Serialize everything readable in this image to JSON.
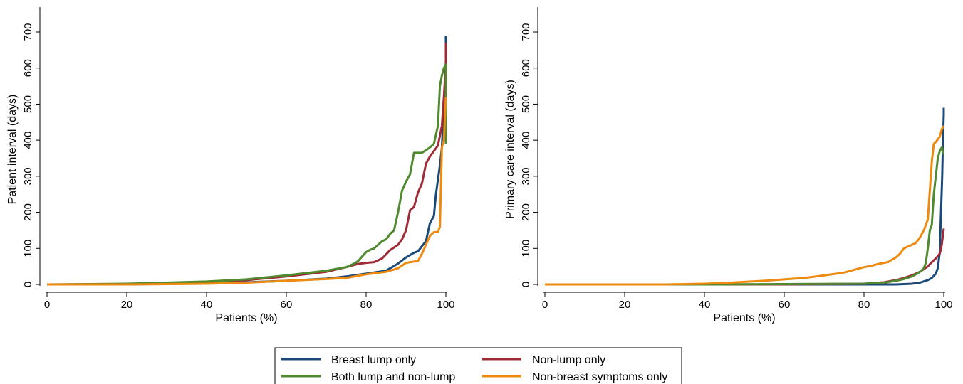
{
  "colors": {
    "breast_lump_only": "#1a4a7a",
    "non_lump_only": "#9e2a36",
    "both_lump_and_non_lump": "#4f8a2e",
    "non_breast_symptoms_only": "#ee8a10"
  },
  "legend": {
    "placement": "bottom-center",
    "items": [
      {
        "key": "breast_lump_only",
        "label": "Breast lump only"
      },
      {
        "key": "non_lump_only",
        "label": "Non-lump only"
      },
      {
        "key": "both_lump_and_non_lump",
        "label": "Both lump and non-lump"
      },
      {
        "key": "non_breast_symptoms_only",
        "label": "Non-breast symptoms only"
      }
    ]
  },
  "chart_data": [
    {
      "type": "line",
      "title": "",
      "xlabel": "Patients (%)",
      "ylabel": "Patient interval (days)",
      "xlim": [
        0,
        100
      ],
      "ylim": [
        0,
        700
      ],
      "xticks": [
        0,
        20,
        40,
        60,
        80,
        100
      ],
      "yticks": [
        0,
        100,
        200,
        300,
        400,
        500,
        600,
        700
      ],
      "grid": false,
      "series": [
        {
          "key": "breast_lump_only",
          "name": "Breast lump only",
          "x": [
            0,
            20,
            40,
            50,
            60,
            70,
            75,
            80,
            85,
            88,
            90,
            92,
            93,
            95,
            96,
            97,
            97.5,
            98,
            98.5,
            99,
            99.3,
            99.6,
            99.8,
            100,
            100,
            100
          ],
          "y": [
            0,
            0,
            3,
            6,
            10,
            16,
            22,
            30,
            38,
            58,
            75,
            88,
            92,
            120,
            170,
            190,
            250,
            290,
            330,
            380,
            450,
            500,
            560,
            620,
            660,
            690
          ]
        },
        {
          "key": "non_lump_only",
          "name": "Non-lump only",
          "x": [
            0,
            20,
            40,
            50,
            60,
            70,
            75,
            78,
            80,
            82,
            84,
            86,
            88,
            89,
            90,
            91,
            92,
            93,
            94,
            95,
            96,
            97,
            98,
            99,
            99.5,
            100,
            100
          ],
          "y": [
            0,
            1,
            6,
            12,
            22,
            35,
            48,
            57,
            60,
            62,
            72,
            95,
            110,
            125,
            150,
            205,
            215,
            255,
            280,
            335,
            355,
            370,
            385,
            440,
            520,
            610,
            670
          ]
        },
        {
          "key": "both_lump_and_non_lump",
          "name": "Both lump and non-lump",
          "x": [
            0,
            20,
            40,
            50,
            60,
            70,
            75,
            77,
            78,
            80,
            81,
            82,
            84,
            85,
            86,
            87,
            88,
            89,
            90,
            91,
            92,
            94,
            95,
            96,
            97,
            98,
            98.5,
            99,
            99.5,
            100,
            100
          ],
          "y": [
            0,
            2,
            8,
            14,
            25,
            38,
            48,
            58,
            65,
            90,
            96,
            100,
            120,
            125,
            140,
            150,
            200,
            260,
            285,
            305,
            365,
            365,
            372,
            380,
            390,
            440,
            550,
            580,
            600,
            610,
            390
          ]
        },
        {
          "key": "non_breast_symptoms_only",
          "name": "Non-breast symptoms only",
          "x": [
            0,
            20,
            40,
            50,
            60,
            70,
            75,
            80,
            85,
            88,
            90,
            93,
            94,
            95,
            96,
            97,
            97.5,
            98,
            98.5,
            99,
            99.5,
            99.7,
            100
          ],
          "y": [
            0,
            0,
            2,
            5,
            10,
            15,
            18,
            28,
            35,
            45,
            60,
            65,
            85,
            110,
            135,
            145,
            145,
            145,
            160,
            380,
            400,
            450,
            520
          ]
        }
      ]
    },
    {
      "type": "line",
      "title": "",
      "xlabel": "Patients (%)",
      "ylabel": "Primary care interval (days)",
      "xlim": [
        0,
        100
      ],
      "ylim": [
        0,
        700
      ],
      "xticks": [
        0,
        20,
        40,
        60,
        80,
        100
      ],
      "yticks": [
        0,
        100,
        200,
        300,
        400,
        500,
        600,
        700
      ],
      "grid": false,
      "series": [
        {
          "key": "breast_lump_only",
          "name": "Breast lump only",
          "x": [
            0,
            40,
            60,
            80,
            88,
            90,
            92,
            94,
            96,
            97,
            98,
            98.5,
            99,
            99.3,
            99.6,
            99.8,
            100,
            100
          ],
          "y": [
            0,
            0,
            0,
            0,
            0,
            1,
            2,
            5,
            12,
            18,
            30,
            45,
            90,
            200,
            300,
            400,
            470,
            490
          ]
        },
        {
          "key": "non_lump_only",
          "name": "Non-lump only",
          "x": [
            0,
            40,
            60,
            80,
            85,
            88,
            90,
            92,
            94,
            96,
            97,
            98,
            99,
            99.5,
            100
          ],
          "y": [
            0,
            0,
            0,
            2,
            6,
            12,
            18,
            25,
            35,
            50,
            62,
            72,
            85,
            110,
            155
          ]
        },
        {
          "key": "both_lump_and_non_lump",
          "name": "Both lump and non-lump",
          "x": [
            0,
            40,
            60,
            80,
            85,
            88,
            90,
            92,
            93,
            94,
            95,
            95.5,
            96,
            96.5,
            97,
            97.5,
            98,
            98.5,
            99,
            99.5,
            100
          ],
          "y": [
            0,
            0,
            1,
            2,
            5,
            10,
            15,
            22,
            28,
            35,
            45,
            60,
            100,
            150,
            165,
            250,
            300,
            350,
            370,
            380,
            360
          ]
        },
        {
          "key": "non_breast_symptoms_only",
          "name": "Non-breast symptoms only",
          "x": [
            0,
            30,
            40,
            45,
            50,
            55,
            60,
            65,
            70,
            75,
            78,
            80,
            82,
            84,
            86,
            88,
            89,
            90,
            92,
            93,
            94,
            95,
            96,
            96.5,
            97,
            97.5,
            98,
            99,
            99.5,
            100
          ],
          "y": [
            0,
            0,
            2,
            4,
            7,
            10,
            14,
            18,
            25,
            33,
            42,
            48,
            52,
            58,
            62,
            75,
            85,
            100,
            110,
            115,
            130,
            150,
            180,
            260,
            340,
            390,
            395,
            410,
            430,
            440
          ]
        }
      ]
    }
  ]
}
